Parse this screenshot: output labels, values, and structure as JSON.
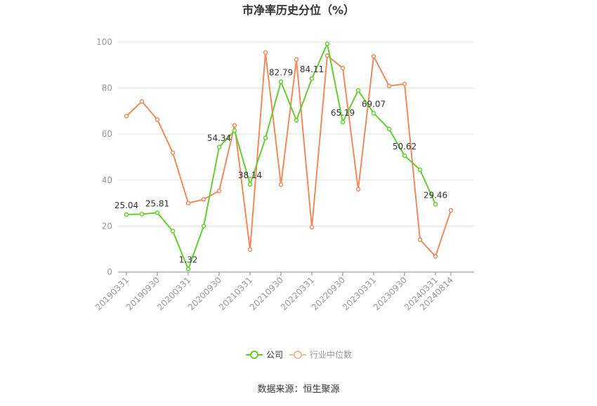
{
  "chart_data": {
    "type": "line",
    "title": "市净率历史分位（%）",
    "categories": [
      "20190331",
      "20190630",
      "20190930",
      "20191231",
      "20200331",
      "20200630",
      "20200930",
      "20201231",
      "20210331",
      "20210630",
      "20210930",
      "20211231",
      "20220331",
      "20220630",
      "20220930",
      "20221231",
      "20230331",
      "20230630",
      "20230930",
      "20231231",
      "20240331",
      "20240814"
    ],
    "x_tick_labels": [
      "20190331",
      "20190930",
      "20200331",
      "20200930",
      "20210331",
      "20210930",
      "20220331",
      "20220930",
      "20230331",
      "20230930",
      "20240331",
      "20240814"
    ],
    "ylim": [
      0,
      100
    ],
    "yticks": [
      0,
      20,
      40,
      60,
      80,
      100
    ],
    "grid": true,
    "legend_position": "bottom",
    "series": [
      {
        "name": "公司",
        "color": "#66cc33",
        "values": [
          25.04,
          25.2,
          25.81,
          17.8,
          1.32,
          20.0,
          54.34,
          61.5,
          38.14,
          58.3,
          82.79,
          66.0,
          84.11,
          99.3,
          65.19,
          79.0,
          69.07,
          62.2,
          50.62,
          44.5,
          29.46,
          null
        ],
        "labels": {
          "0": "25.04",
          "2": "25.81",
          "4": "1.32",
          "6": "54.34",
          "8": "38.14",
          "10": "82.79",
          "12": "84.11",
          "14": "65.19",
          "16": "69.07",
          "18": "50.62",
          "20": "29.46"
        }
      },
      {
        "name": "行业中位数",
        "color": "#f08a5d",
        "values": [
          67.8,
          74.2,
          66.3,
          51.9,
          30.0,
          31.6,
          35.3,
          63.8,
          9.8,
          95.5,
          38.0,
          92.4,
          19.5,
          94.1,
          88.7,
          36.0,
          93.8,
          80.9,
          81.8,
          14.1,
          6.8,
          26.8
        ]
      }
    ],
    "source": "数据来源：恒生聚源"
  }
}
